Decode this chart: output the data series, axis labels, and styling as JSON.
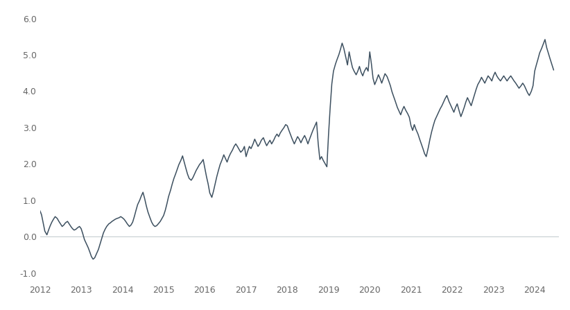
{
  "line_color": "#3d5060",
  "background_color": "#ffffff",
  "zero_line_color": "#c0c8cc",
  "xlim": [
    2012.0,
    2024.58
  ],
  "ylim": [
    -1.25,
    6.25
  ],
  "yticks": [
    -1.0,
    0.0,
    1.0,
    2.0,
    3.0,
    4.0,
    5.0,
    6.0
  ],
  "xticks": [
    2012,
    2013,
    2014,
    2015,
    2016,
    2017,
    2018,
    2019,
    2020,
    2021,
    2022,
    2023,
    2024
  ],
  "data": [
    [
      2012.0,
      0.72
    ],
    [
      2012.04,
      0.6
    ],
    [
      2012.08,
      0.38
    ],
    [
      2012.12,
      0.15
    ],
    [
      2012.17,
      0.05
    ],
    [
      2012.21,
      0.18
    ],
    [
      2012.25,
      0.3
    ],
    [
      2012.29,
      0.4
    ],
    [
      2012.33,
      0.48
    ],
    [
      2012.37,
      0.55
    ],
    [
      2012.42,
      0.5
    ],
    [
      2012.46,
      0.42
    ],
    [
      2012.5,
      0.35
    ],
    [
      2012.54,
      0.28
    ],
    [
      2012.58,
      0.32
    ],
    [
      2012.62,
      0.38
    ],
    [
      2012.67,
      0.42
    ],
    [
      2012.71,
      0.35
    ],
    [
      2012.75,
      0.28
    ],
    [
      2012.79,
      0.22
    ],
    [
      2012.83,
      0.18
    ],
    [
      2012.87,
      0.2
    ],
    [
      2012.92,
      0.25
    ],
    [
      2012.96,
      0.28
    ],
    [
      2013.0,
      0.22
    ],
    [
      2013.04,
      0.08
    ],
    [
      2013.08,
      -0.08
    ],
    [
      2013.12,
      -0.18
    ],
    [
      2013.17,
      -0.3
    ],
    [
      2013.21,
      -0.42
    ],
    [
      2013.25,
      -0.55
    ],
    [
      2013.29,
      -0.62
    ],
    [
      2013.33,
      -0.58
    ],
    [
      2013.37,
      -0.48
    ],
    [
      2013.42,
      -0.35
    ],
    [
      2013.46,
      -0.2
    ],
    [
      2013.5,
      -0.05
    ],
    [
      2013.54,
      0.1
    ],
    [
      2013.58,
      0.2
    ],
    [
      2013.62,
      0.28
    ],
    [
      2013.67,
      0.35
    ],
    [
      2013.71,
      0.38
    ],
    [
      2013.75,
      0.42
    ],
    [
      2013.79,
      0.45
    ],
    [
      2013.83,
      0.48
    ],
    [
      2013.87,
      0.5
    ],
    [
      2013.92,
      0.52
    ],
    [
      2013.96,
      0.55
    ],
    [
      2014.0,
      0.52
    ],
    [
      2014.04,
      0.48
    ],
    [
      2014.08,
      0.42
    ],
    [
      2014.12,
      0.35
    ],
    [
      2014.17,
      0.28
    ],
    [
      2014.21,
      0.32
    ],
    [
      2014.25,
      0.4
    ],
    [
      2014.29,
      0.55
    ],
    [
      2014.33,
      0.72
    ],
    [
      2014.37,
      0.88
    ],
    [
      2014.42,
      1.0
    ],
    [
      2014.46,
      1.12
    ],
    [
      2014.5,
      1.22
    ],
    [
      2014.54,
      1.05
    ],
    [
      2014.58,
      0.85
    ],
    [
      2014.62,
      0.68
    ],
    [
      2014.67,
      0.52
    ],
    [
      2014.71,
      0.4
    ],
    [
      2014.75,
      0.32
    ],
    [
      2014.79,
      0.28
    ],
    [
      2014.83,
      0.3
    ],
    [
      2014.87,
      0.35
    ],
    [
      2014.92,
      0.42
    ],
    [
      2014.96,
      0.5
    ],
    [
      2015.0,
      0.58
    ],
    [
      2015.04,
      0.72
    ],
    [
      2015.08,
      0.9
    ],
    [
      2015.12,
      1.1
    ],
    [
      2015.17,
      1.28
    ],
    [
      2015.21,
      1.45
    ],
    [
      2015.25,
      1.6
    ],
    [
      2015.29,
      1.72
    ],
    [
      2015.33,
      1.85
    ],
    [
      2015.37,
      1.98
    ],
    [
      2015.42,
      2.1
    ],
    [
      2015.46,
      2.22
    ],
    [
      2015.5,
      2.05
    ],
    [
      2015.54,
      1.88
    ],
    [
      2015.58,
      1.72
    ],
    [
      2015.62,
      1.6
    ],
    [
      2015.67,
      1.55
    ],
    [
      2015.71,
      1.62
    ],
    [
      2015.75,
      1.72
    ],
    [
      2015.79,
      1.82
    ],
    [
      2015.83,
      1.9
    ],
    [
      2015.87,
      1.98
    ],
    [
      2015.92,
      2.05
    ],
    [
      2015.96,
      2.12
    ],
    [
      2016.0,
      1.88
    ],
    [
      2016.04,
      1.65
    ],
    [
      2016.08,
      1.45
    ],
    [
      2016.12,
      1.2
    ],
    [
      2016.17,
      1.08
    ],
    [
      2016.21,
      1.25
    ],
    [
      2016.25,
      1.45
    ],
    [
      2016.29,
      1.65
    ],
    [
      2016.33,
      1.82
    ],
    [
      2016.37,
      1.98
    ],
    [
      2016.42,
      2.12
    ],
    [
      2016.46,
      2.25
    ],
    [
      2016.5,
      2.15
    ],
    [
      2016.54,
      2.05
    ],
    [
      2016.58,
      2.18
    ],
    [
      2016.62,
      2.28
    ],
    [
      2016.67,
      2.38
    ],
    [
      2016.71,
      2.48
    ],
    [
      2016.75,
      2.55
    ],
    [
      2016.79,
      2.48
    ],
    [
      2016.83,
      2.4
    ],
    [
      2016.87,
      2.32
    ],
    [
      2016.92,
      2.38
    ],
    [
      2016.96,
      2.48
    ],
    [
      2017.0,
      2.2
    ],
    [
      2017.04,
      2.35
    ],
    [
      2017.08,
      2.48
    ],
    [
      2017.12,
      2.42
    ],
    [
      2017.17,
      2.55
    ],
    [
      2017.21,
      2.68
    ],
    [
      2017.25,
      2.58
    ],
    [
      2017.29,
      2.48
    ],
    [
      2017.33,
      2.55
    ],
    [
      2017.37,
      2.65
    ],
    [
      2017.42,
      2.72
    ],
    [
      2017.46,
      2.6
    ],
    [
      2017.5,
      2.5
    ],
    [
      2017.54,
      2.58
    ],
    [
      2017.58,
      2.65
    ],
    [
      2017.62,
      2.55
    ],
    [
      2017.67,
      2.65
    ],
    [
      2017.71,
      2.75
    ],
    [
      2017.75,
      2.82
    ],
    [
      2017.79,
      2.75
    ],
    [
      2017.83,
      2.85
    ],
    [
      2017.87,
      2.92
    ],
    [
      2017.92,
      3.0
    ],
    [
      2017.96,
      3.08
    ],
    [
      2018.0,
      3.05
    ],
    [
      2018.04,
      2.92
    ],
    [
      2018.08,
      2.8
    ],
    [
      2018.12,
      2.68
    ],
    [
      2018.17,
      2.55
    ],
    [
      2018.21,
      2.65
    ],
    [
      2018.25,
      2.75
    ],
    [
      2018.29,
      2.68
    ],
    [
      2018.33,
      2.58
    ],
    [
      2018.37,
      2.68
    ],
    [
      2018.42,
      2.78
    ],
    [
      2018.46,
      2.68
    ],
    [
      2018.5,
      2.55
    ],
    [
      2018.54,
      2.68
    ],
    [
      2018.58,
      2.8
    ],
    [
      2018.62,
      2.92
    ],
    [
      2018.67,
      3.05
    ],
    [
      2018.71,
      3.15
    ],
    [
      2018.75,
      2.55
    ],
    [
      2018.79,
      2.12
    ],
    [
      2018.83,
      2.2
    ],
    [
      2018.87,
      2.1
    ],
    [
      2018.92,
      2.0
    ],
    [
      2018.96,
      1.92
    ],
    [
      2019.0,
      2.8
    ],
    [
      2019.04,
      3.55
    ],
    [
      2019.08,
      4.2
    ],
    [
      2019.12,
      4.55
    ],
    [
      2019.17,
      4.75
    ],
    [
      2019.21,
      4.88
    ],
    [
      2019.25,
      5.0
    ],
    [
      2019.29,
      5.15
    ],
    [
      2019.33,
      5.32
    ],
    [
      2019.37,
      5.18
    ],
    [
      2019.42,
      4.92
    ],
    [
      2019.46,
      4.72
    ],
    [
      2019.5,
      5.08
    ],
    [
      2019.54,
      4.85
    ],
    [
      2019.58,
      4.65
    ],
    [
      2019.62,
      4.55
    ],
    [
      2019.67,
      4.45
    ],
    [
      2019.71,
      4.55
    ],
    [
      2019.75,
      4.68
    ],
    [
      2019.79,
      4.52
    ],
    [
      2019.83,
      4.42
    ],
    [
      2019.87,
      4.55
    ],
    [
      2019.92,
      4.65
    ],
    [
      2019.96,
      4.55
    ],
    [
      2020.0,
      5.08
    ],
    [
      2020.04,
      4.75
    ],
    [
      2020.08,
      4.35
    ],
    [
      2020.12,
      4.18
    ],
    [
      2020.17,
      4.32
    ],
    [
      2020.21,
      4.45
    ],
    [
      2020.25,
      4.35
    ],
    [
      2020.29,
      4.22
    ],
    [
      2020.33,
      4.35
    ],
    [
      2020.37,
      4.48
    ],
    [
      2020.42,
      4.4
    ],
    [
      2020.46,
      4.28
    ],
    [
      2020.5,
      4.15
    ],
    [
      2020.54,
      3.98
    ],
    [
      2020.58,
      3.85
    ],
    [
      2020.62,
      3.72
    ],
    [
      2020.67,
      3.55
    ],
    [
      2020.71,
      3.45
    ],
    [
      2020.75,
      3.35
    ],
    [
      2020.79,
      3.48
    ],
    [
      2020.83,
      3.58
    ],
    [
      2020.87,
      3.48
    ],
    [
      2020.92,
      3.38
    ],
    [
      2020.96,
      3.28
    ],
    [
      2021.0,
      3.05
    ],
    [
      2021.04,
      2.92
    ],
    [
      2021.08,
      3.08
    ],
    [
      2021.12,
      2.95
    ],
    [
      2021.17,
      2.82
    ],
    [
      2021.21,
      2.68
    ],
    [
      2021.25,
      2.55
    ],
    [
      2021.29,
      2.42
    ],
    [
      2021.33,
      2.28
    ],
    [
      2021.37,
      2.2
    ],
    [
      2021.42,
      2.45
    ],
    [
      2021.46,
      2.68
    ],
    [
      2021.5,
      2.88
    ],
    [
      2021.54,
      3.05
    ],
    [
      2021.58,
      3.2
    ],
    [
      2021.62,
      3.3
    ],
    [
      2021.67,
      3.42
    ],
    [
      2021.71,
      3.52
    ],
    [
      2021.75,
      3.6
    ],
    [
      2021.79,
      3.7
    ],
    [
      2021.83,
      3.8
    ],
    [
      2021.87,
      3.88
    ],
    [
      2021.92,
      3.72
    ],
    [
      2021.96,
      3.62
    ],
    [
      2022.0,
      3.52
    ],
    [
      2022.04,
      3.42
    ],
    [
      2022.08,
      3.55
    ],
    [
      2022.12,
      3.65
    ],
    [
      2022.17,
      3.45
    ],
    [
      2022.21,
      3.3
    ],
    [
      2022.25,
      3.42
    ],
    [
      2022.29,
      3.55
    ],
    [
      2022.33,
      3.7
    ],
    [
      2022.37,
      3.82
    ],
    [
      2022.42,
      3.7
    ],
    [
      2022.46,
      3.6
    ],
    [
      2022.5,
      3.75
    ],
    [
      2022.54,
      3.9
    ],
    [
      2022.58,
      4.05
    ],
    [
      2022.62,
      4.18
    ],
    [
      2022.67,
      4.28
    ],
    [
      2022.71,
      4.38
    ],
    [
      2022.75,
      4.3
    ],
    [
      2022.79,
      4.22
    ],
    [
      2022.83,
      4.32
    ],
    [
      2022.87,
      4.42
    ],
    [
      2022.92,
      4.35
    ],
    [
      2022.96,
      4.28
    ],
    [
      2023.0,
      4.42
    ],
    [
      2023.04,
      4.52
    ],
    [
      2023.08,
      4.42
    ],
    [
      2023.12,
      4.35
    ],
    [
      2023.17,
      4.28
    ],
    [
      2023.21,
      4.35
    ],
    [
      2023.25,
      4.42
    ],
    [
      2023.29,
      4.35
    ],
    [
      2023.33,
      4.28
    ],
    [
      2023.37,
      4.35
    ],
    [
      2023.42,
      4.42
    ],
    [
      2023.46,
      4.35
    ],
    [
      2023.5,
      4.28
    ],
    [
      2023.54,
      4.22
    ],
    [
      2023.58,
      4.15
    ],
    [
      2023.62,
      4.08
    ],
    [
      2023.67,
      4.15
    ],
    [
      2023.71,
      4.22
    ],
    [
      2023.75,
      4.15
    ],
    [
      2023.79,
      4.05
    ],
    [
      2023.83,
      3.95
    ],
    [
      2023.87,
      3.88
    ],
    [
      2023.92,
      4.0
    ],
    [
      2023.96,
      4.15
    ],
    [
      2024.0,
      4.55
    ],
    [
      2024.04,
      4.72
    ],
    [
      2024.08,
      4.88
    ],
    [
      2024.12,
      5.05
    ],
    [
      2024.17,
      5.18
    ],
    [
      2024.21,
      5.3
    ],
    [
      2024.25,
      5.42
    ],
    [
      2024.29,
      5.2
    ],
    [
      2024.33,
      5.05
    ],
    [
      2024.37,
      4.9
    ],
    [
      2024.42,
      4.72
    ],
    [
      2024.46,
      4.58
    ]
  ]
}
